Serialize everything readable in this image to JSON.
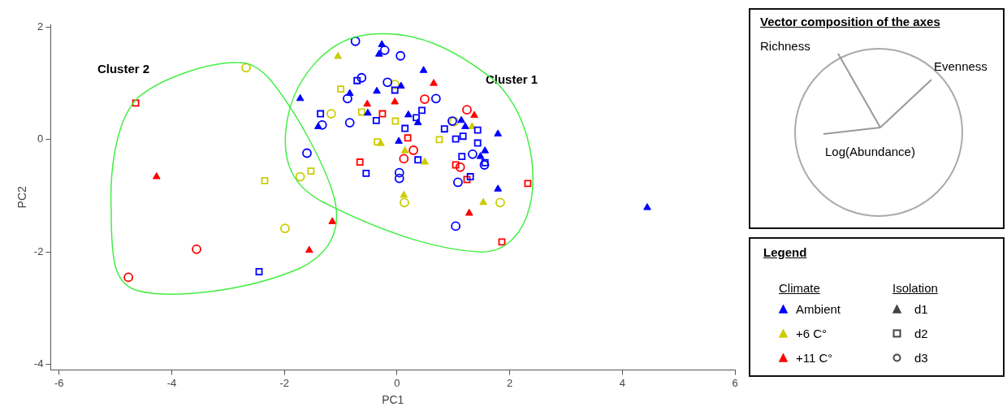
{
  "chart_data": {
    "type": "scatter",
    "xlabel": "PC1",
    "ylabel": "PC2",
    "xlim": [
      -6.15,
      6
    ],
    "ylim": [
      -4.1,
      2.05
    ],
    "xticks": [
      -6,
      -4,
      -2,
      0,
      2,
      4,
      6
    ],
    "yticks": [
      -4,
      -2,
      0,
      2
    ],
    "grid": false,
    "legend": "right",
    "legend_title": "Legend",
    "annotations": [
      "Cluster 1",
      "Cluster 2",
      "Vector composition of the axes",
      "Richness",
      "Evenness",
      "Log(Abundance)",
      "Climate",
      "Isolation",
      "d1",
      "d2",
      "d3"
    ],
    "series": [
      {
        "name": "Ambient",
        "color": "#0000ff",
        "marker": "triangle",
        "x": [
          -1.72,
          -1.4,
          -0.84,
          -0.27,
          -0.32,
          0.07,
          -0.36,
          -0.52,
          0.2,
          0.03,
          0.47,
          0.37,
          1.14,
          1.21,
          1.79,
          1.56,
          1.48,
          1.79,
          4.44
        ],
        "values": [
          0.73,
          0.23,
          0.82,
          1.69,
          1.52,
          0.95,
          0.86,
          0.47,
          0.44,
          -0.03,
          1.23,
          0.3,
          0.34,
          0.23,
          0.1,
          -0.2,
          -0.3,
          -0.88,
          -1.21
        ]
      },
      {
        "color": "#0000ff",
        "marker": "square",
        "x": [
          -2.45,
          -1.36,
          -0.71,
          -0.04,
          -0.37,
          0.14,
          -0.55,
          0.44,
          0.34,
          1.43,
          0.84,
          1.04,
          1.17,
          1.43,
          1.56,
          1.15,
          1.3,
          0.37
        ],
        "values": [
          -2.35,
          0.46,
          1.05,
          0.88,
          0.34,
          0.2,
          -0.6,
          0.52,
          0.39,
          0.17,
          0.19,
          0.01,
          0.06,
          -0.06,
          -0.41,
          -0.3,
          -0.66,
          -0.36
        ]
      },
      {
        "color": "#0000ff",
        "marker": "circle",
        "x": [
          -1.6,
          -1.33,
          -0.84,
          -0.88,
          -0.74,
          -0.22,
          0.06,
          -0.63,
          -0.17,
          0.04,
          0.04,
          0.69,
          0.98,
          1.34,
          1.55,
          1.08,
          1.04
        ],
        "values": [
          -0.24,
          0.26,
          0.3,
          0.73,
          1.75,
          1.59,
          1.49,
          1.1,
          1.02,
          -0.59,
          -0.69,
          0.73,
          0.33,
          -0.26,
          -0.45,
          -0.76,
          -1.54
        ]
      },
      {
        "name": "+6 C°",
        "color": "#cccc00",
        "marker": "triangle",
        "x": [
          -1.05,
          -0.29,
          0.14,
          0.12,
          1.33,
          1.53,
          0.49
        ],
        "values": [
          1.48,
          -0.07,
          -0.2,
          -0.99,
          0.23,
          -1.12,
          -0.4
        ]
      },
      {
        "color": "#cccc00",
        "marker": "square",
        "x": [
          -2.35,
          -1.53,
          -1.0,
          -0.63,
          -0.03,
          -0.35,
          0.75
        ],
        "values": [
          -0.73,
          -0.56,
          0.9,
          0.49,
          0.33,
          -0.04,
          0.0
        ]
      },
      {
        "color": "#cccc00",
        "marker": "circle",
        "x": [
          -2.68,
          -1.99,
          -1.72,
          -1.17,
          -0.04,
          0.13,
          1.01,
          1.83
        ],
        "values": [
          1.28,
          -1.58,
          -0.66,
          0.46,
          0.98,
          -1.12,
          0.32,
          -1.12
        ]
      },
      {
        "name": "+11 C°",
        "color": "#ff0000",
        "marker": "triangle",
        "x": [
          -4.27,
          -1.56,
          -1.15,
          -0.53,
          -0.04,
          0.65,
          1.37,
          1.28
        ],
        "values": [
          -0.66,
          -1.97,
          -1.46,
          0.63,
          0.67,
          1.0,
          0.43,
          -1.31
        ]
      },
      {
        "color": "#ff0000",
        "marker": "square",
        "x": [
          -4.64,
          -0.26,
          0.19,
          -0.66,
          1.04,
          1.24,
          2.32,
          1.86
        ],
        "values": [
          0.65,
          0.46,
          0.03,
          -0.4,
          -0.45,
          -0.71,
          -0.78,
          -1.82
        ]
      },
      {
        "color": "#ff0000",
        "marker": "circle",
        "x": [
          -3.56,
          -4.77,
          0.12,
          0.49,
          1.24,
          1.12,
          0.29
        ],
        "values": [
          -1.95,
          -2.45,
          -0.34,
          0.72,
          0.53,
          -0.49,
          -0.19
        ]
      }
    ]
  }
}
